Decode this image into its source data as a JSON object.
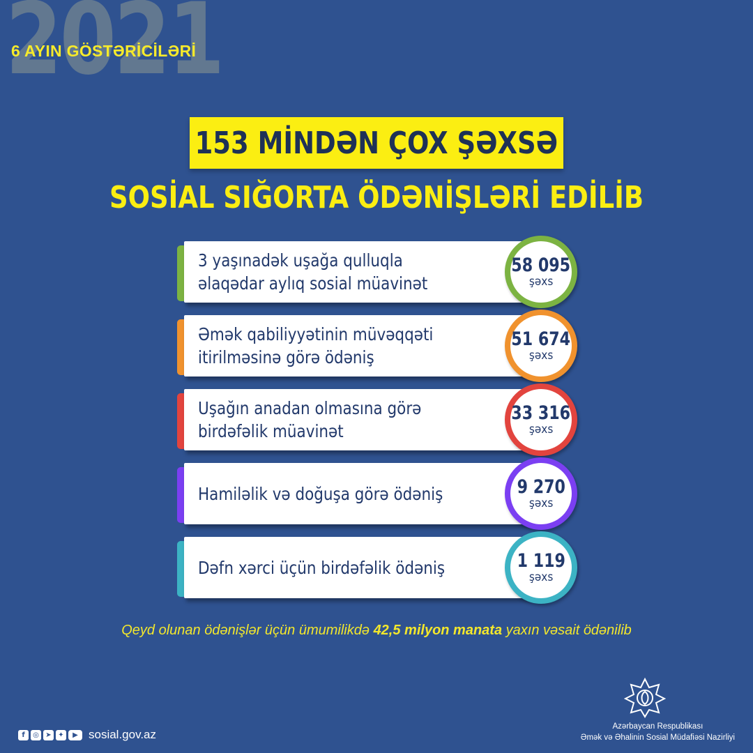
{
  "header": {
    "year": "2021",
    "period": "6 AYIN GÖSTƏRİCİLƏRİ",
    "title_line1": "153 MİNDƏN ÇOX ŞƏXSƏ",
    "title_line2": "SOSİAL SIĞORTA ÖDƏNİŞLƏRİ EDİLİB"
  },
  "items": [
    {
      "label": "3 yaşınadək uşağa qulluqla əlaqədar aylıq sosial müavinət",
      "value": "58 095",
      "unit": "şəxs",
      "color": "#7cb342"
    },
    {
      "label": "Əmək qabiliyyətinin müvəqqəti itirilməsinə görə ödəniş",
      "value": "51 674",
      "unit": "şəxs",
      "color": "#f0922e"
    },
    {
      "label": "Uşağın anadan olmasına görə birdəfəlik müavinət",
      "value": "33 316",
      "unit": "şəxs",
      "color": "#e2443e"
    },
    {
      "label": "Hamiləlik və doğuşa görə ödəniş",
      "value": "9 270",
      "unit": "şəxs",
      "color": "#7b3ff2"
    },
    {
      "label": "Dəfn xərci üçün birdəfəlik ödəniş",
      "value": "1 119",
      "unit": "şəxs",
      "color": "#3cb3c4"
    }
  ],
  "note": {
    "before": "Qeyd olunan ödənişlər üçün ümumilikdə ",
    "bold": "42,5 milyon manata",
    "after": " yaxın vəsait ödənilib"
  },
  "footer": {
    "social_icons": [
      "facebook-icon",
      "instagram-icon",
      "telegram-icon",
      "twitter-icon",
      "youtube-icon"
    ],
    "website": "sosial.gov.az",
    "ministry_line1": "Azərbaycan Respublikası",
    "ministry_line2": "Əmək və Əhalinin Sosial Müdafiəsi Nazirliyi"
  }
}
